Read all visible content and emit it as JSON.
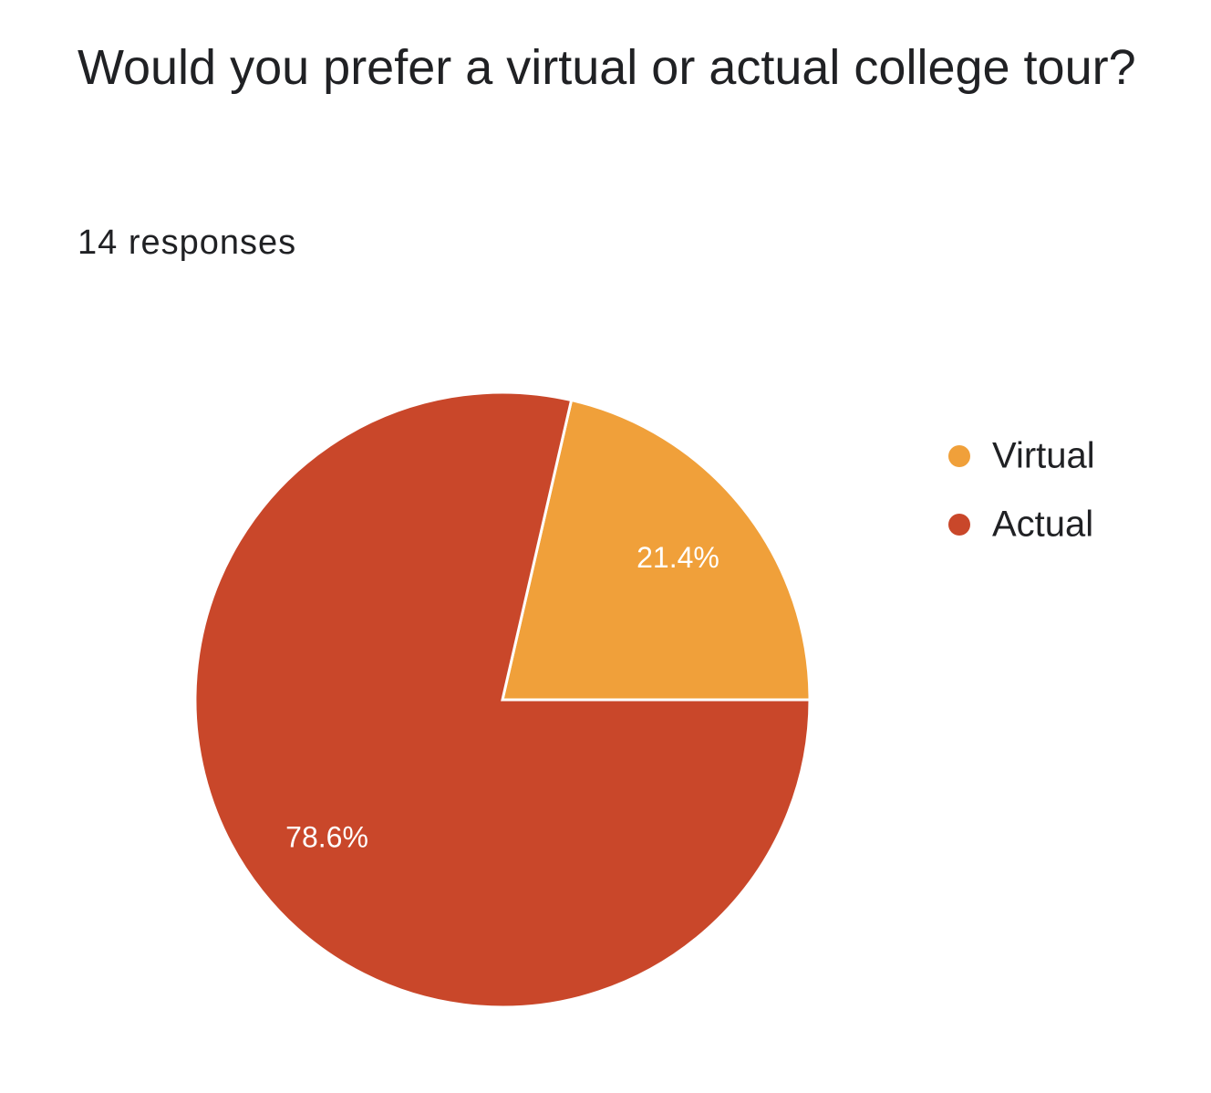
{
  "chart_data": {
    "type": "pie",
    "title": "Would you prefer a virtual or actual college tour?",
    "subtitle": "14 responses",
    "categories": [
      "Virtual",
      "Actual"
    ],
    "values": [
      21.4,
      78.6
    ],
    "value_labels": [
      "21.4%",
      "78.6%"
    ],
    "colors": [
      "#f0a03a",
      "#c9472a"
    ],
    "legend": "right"
  }
}
